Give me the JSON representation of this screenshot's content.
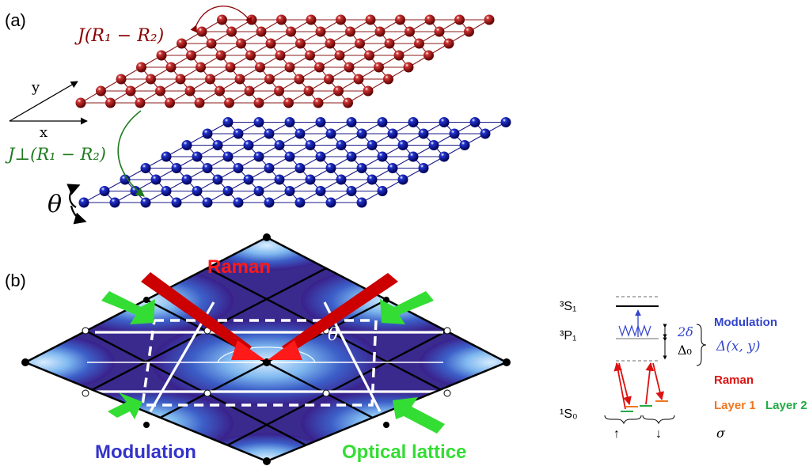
{
  "panel_a": {
    "label": "(a)",
    "top_hopping": "J(R₁ − R₂)",
    "inter_hopping": "J⊥(R₁ − R₂)",
    "axis_x": "x",
    "axis_y": "y",
    "twist": "θ",
    "colors": {
      "top_layer": "#8b0000",
      "bottom_layer": "#00008b",
      "inter": "#1f7a1f"
    }
  },
  "panel_b": {
    "label": "(b)",
    "raman": "Raman",
    "modulation": "Modulation",
    "optical_lattice": "Optical lattice",
    "angle": "θ",
    "colors": {
      "raman": "#ff1a1a",
      "modulation": "#3333cc",
      "optical_lattice": "#33dd33"
    }
  },
  "levels": {
    "s1": "³S₁",
    "p1": "³P₁",
    "s0": "¹S₀",
    "two_delta": "2δ",
    "delta0": "Δ₀",
    "modulation": "Modulation",
    "delta_xy": "Δ(x, y)",
    "raman": "Raman",
    "layer1": "Layer 1",
    "layer2": "Layer 2",
    "sigma": "σ",
    "up": "↑",
    "down": "↓",
    "colors": {
      "modulation": "#3344cc",
      "raman": "#dd1111",
      "layer1": "#ee7722",
      "layer2": "#22aa44"
    }
  }
}
